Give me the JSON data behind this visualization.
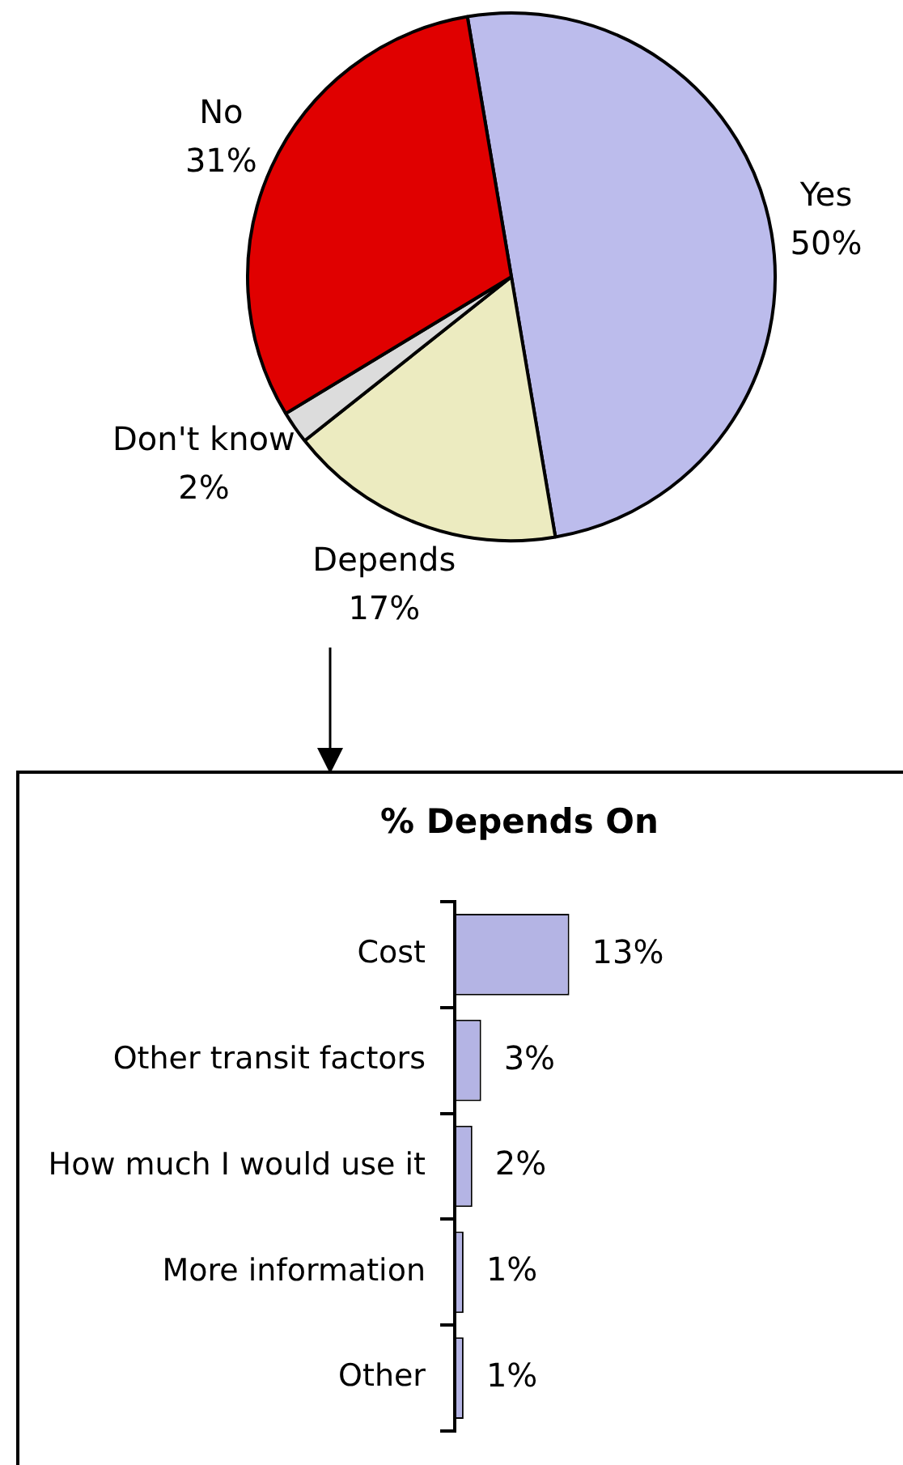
{
  "chart_data": [
    {
      "type": "pie",
      "categories": [
        "Yes",
        "Depends",
        "Don't know",
        "No"
      ],
      "values": [
        50,
        17,
        2,
        31
      ],
      "colors": [
        "#bcbcec",
        "#ecebc0",
        "#dcdcdc",
        "#e00000"
      ],
      "value_labels": [
        "50%",
        "17%",
        "2%",
        "31%"
      ]
    },
    {
      "type": "bar",
      "orientation": "horizontal",
      "title": "% Depends On",
      "categories": [
        "Cost",
        "Other transit factors",
        "How much I would use it",
        "More information",
        "Other"
      ],
      "values": [
        13,
        3,
        2,
        1,
        1
      ],
      "color": "#b4b4e4",
      "value_labels": [
        "13%",
        "3%",
        "2%",
        "1%",
        "1%"
      ]
    }
  ]
}
